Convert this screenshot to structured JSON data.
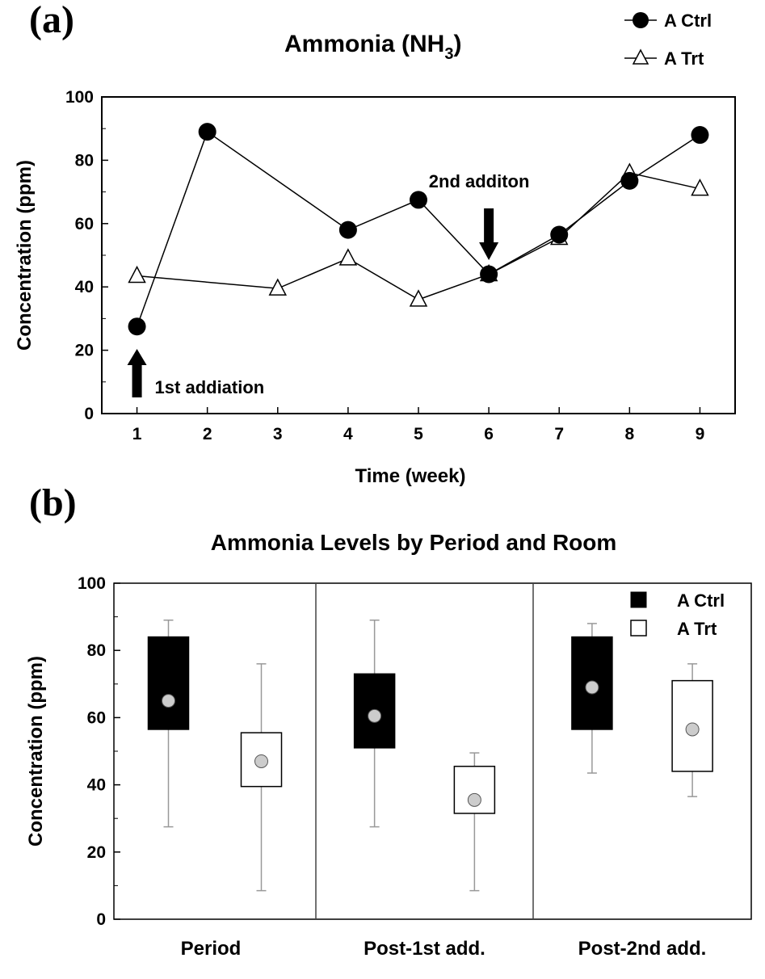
{
  "chart_data": [
    {
      "panel": "(a)",
      "type": "line",
      "title": "Ammonia (NH",
      "title_sub": "3",
      "title_end": ")",
      "xlabel": "Time (week)",
      "ylabel": "Concentration (ppm)",
      "x": [
        1,
        2,
        3,
        4,
        5,
        6,
        7,
        8,
        9
      ],
      "xlim": [
        0.5,
        9.5
      ],
      "ylim": [
        0,
        100
      ],
      "yticks": [
        0,
        20,
        40,
        60,
        80,
        100
      ],
      "grid": false,
      "legend_position": "top-right",
      "series": [
        {
          "name": "A Ctrl",
          "marker": "filled-circle",
          "color": "#000000",
          "points": [
            [
              1,
              27.5
            ],
            [
              2,
              89
            ],
            [
              4,
              58
            ],
            [
              5,
              67.5
            ],
            [
              6,
              44
            ],
            [
              7,
              56.5
            ],
            [
              8,
              73.5
            ],
            [
              9,
              88
            ]
          ]
        },
        {
          "name": "A Trt",
          "marker": "open-triangle",
          "color": "#000000",
          "points": [
            [
              1,
              43.5
            ],
            [
              3,
              39.5
            ],
            [
              4,
              49
            ],
            [
              5,
              36
            ],
            [
              6,
              44
            ],
            [
              7,
              55.5
            ],
            [
              8,
              76
            ],
            [
              9,
              71
            ]
          ]
        }
      ],
      "annotations": [
        {
          "text": "1st addiation",
          "x": 1,
          "arrow": "up"
        },
        {
          "text": "2nd additon",
          "x": 6,
          "arrow": "down"
        }
      ]
    },
    {
      "panel": "(b)",
      "type": "box",
      "title": "Ammonia Levels by Period and Room",
      "ylabel": "Concentration (ppm)",
      "categories": [
        "Period",
        "Post-1st add.",
        "Post-2nd add."
      ],
      "ylim": [
        0,
        100
      ],
      "yticks": [
        0,
        20,
        40,
        60,
        80,
        100
      ],
      "grid": false,
      "legend_position": "top-right",
      "series": [
        {
          "name": "A Ctrl",
          "fill": "#000000",
          "boxes": [
            {
              "min": 27.5,
              "q1": 56.5,
              "median": 65,
              "q3": 84,
              "max": 89
            },
            {
              "min": 27.5,
              "q1": 51,
              "median": 60.5,
              "q3": 73,
              "max": 89
            },
            {
              "min": 43.5,
              "q1": 56.5,
              "median": 69,
              "q3": 84,
              "max": 88
            }
          ]
        },
        {
          "name": "A Trt",
          "fill": "#ffffff",
          "boxes": [
            {
              "min": 8.5,
              "q1": 39.5,
              "median": 47,
              "q3": 55.5,
              "max": 76
            },
            {
              "min": 8.5,
              "q1": 31.5,
              "median": 35.5,
              "q3": 45.5,
              "max": 49.5
            },
            {
              "min": 36.5,
              "q1": 44,
              "median": 56.5,
              "q3": 71,
              "max": 76
            }
          ]
        }
      ]
    }
  ],
  "colors": {
    "median_dot": "#cccccc",
    "whisker": "#999999",
    "axis": "#000000"
  }
}
